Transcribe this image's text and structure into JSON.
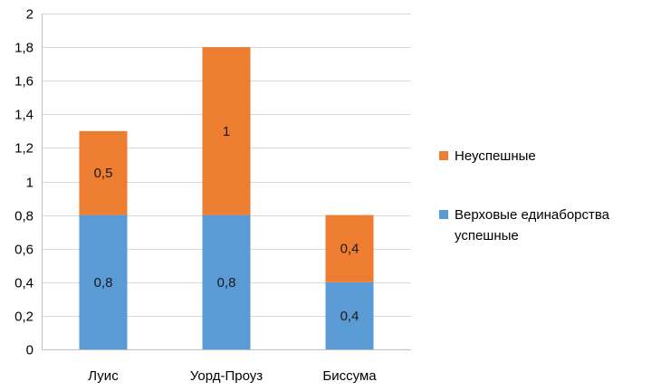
{
  "chart_data": {
    "type": "bar",
    "stacked": true,
    "categories": [
      "Луис",
      "Уорд-Проуз",
      "Биссума"
    ],
    "series": [
      {
        "name": "Верховые единаборства успешные",
        "name_lines": [
          "Верховые единаборства",
          "успешные"
        ],
        "values": [
          0.8,
          0.8,
          0.4
        ],
        "labels": [
          "0,8",
          "0,8",
          "0,4"
        ],
        "color": "#5b9bd5"
      },
      {
        "name": "Неуспешные",
        "name_lines": [
          "Неуспешные"
        ],
        "values": [
          0.5,
          1,
          0.4
        ],
        "labels": [
          "0,5",
          "1",
          "0,4"
        ],
        "color": "#ed7d31"
      }
    ],
    "ylim": [
      0,
      2
    ],
    "yticks": [
      0,
      0.2,
      0.4,
      0.6,
      0.8,
      1,
      1.2,
      1.4,
      1.6,
      1.8,
      2
    ],
    "ytick_labels": [
      "0",
      "0,2",
      "0,4",
      "0,6",
      "0,8",
      "1",
      "1,2",
      "1,4",
      "1,6",
      "1,8",
      "2"
    ],
    "grid": true,
    "legend_position": "right",
    "title": "",
    "xlabel": "",
    "ylabel": ""
  }
}
